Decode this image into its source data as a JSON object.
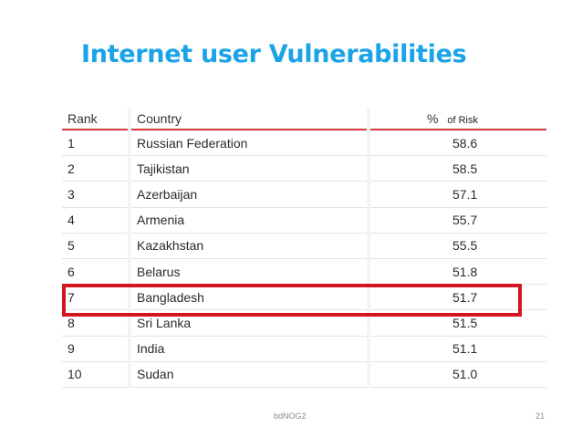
{
  "title": "Internet user  Vulnerabilities",
  "table": {
    "headers": {
      "rank": "Rank",
      "country": "Country",
      "percent": "%",
      "of_risk": "of Risk"
    },
    "rows": [
      {
        "rank": "1",
        "country": "Russian Federation",
        "value": "58.6"
      },
      {
        "rank": "2",
        "country": "Tajikistan",
        "value": "58.5"
      },
      {
        "rank": "3",
        "country": "Azerbaijan",
        "value": "57.1"
      },
      {
        "rank": "4",
        "country": "Armenia",
        "value": "55.7"
      },
      {
        "rank": "5",
        "country": "Kazakhstan",
        "value": "55.5"
      },
      {
        "rank": "6",
        "country": "Belarus",
        "value": "51.8"
      },
      {
        "rank": "7",
        "country": "Bangladesh",
        "value": "51.7"
      },
      {
        "rank": "8",
        "country": "Sri Lanka",
        "value": "51.5"
      },
      {
        "rank": "9",
        "country": "India",
        "value": "51.1"
      },
      {
        "rank": "10",
        "country": "Sudan",
        "value": "51.0"
      }
    ],
    "highlighted_rank": "7",
    "highlight_color": "#d4141e",
    "header_rule_color": "#d63b3b"
  },
  "footer": {
    "center": "bdNOG2",
    "page_number": "21"
  },
  "colors": {
    "title": "#1aa3e6"
  }
}
